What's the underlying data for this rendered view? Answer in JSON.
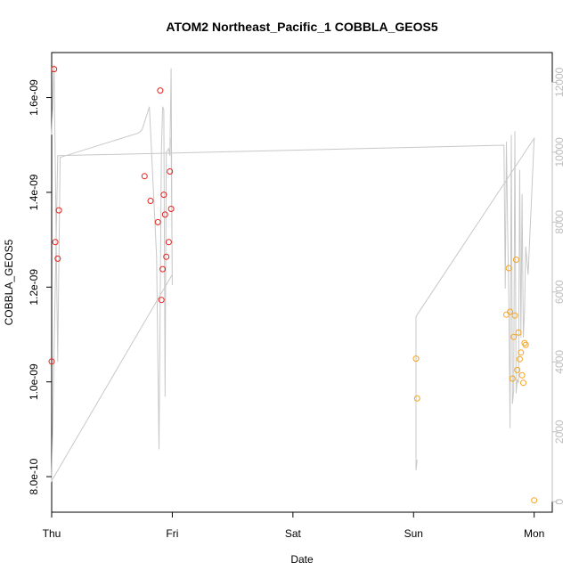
{
  "chart_data": {
    "type": "scatter",
    "title": "ATOM2 Northeast_Pacific_1 COBBLA_GEOS5",
    "xlabel": "Date",
    "ylabel": "COBBLA_GEOS5",
    "xlim": [
      0,
      4.15
    ],
    "ylim": [
      7.25e-10,
      1.695e-09
    ],
    "y2lim": [
      -300,
      12850
    ],
    "x_tick_values": [
      0,
      1,
      2,
      3,
      4
    ],
    "x_tick_labels": [
      "Thu",
      "Fri",
      "Sat",
      "Sun",
      "Mon"
    ],
    "y_tick_values": [
      8e-10,
      1e-09,
      1.2e-09,
      1.4e-09,
      1.6e-09
    ],
    "y_tick_labels": [
      "8.0e-10",
      "1.0e-09",
      "1.2e-09",
      "1.4e-09",
      "1.6e-09"
    ],
    "y2_tick_values": [
      0,
      2000,
      4000,
      6000,
      8000,
      10000,
      12000
    ],
    "y2_tick_labels": [
      "0",
      "2000",
      "4000",
      "6000",
      "8000",
      "10000",
      "12000"
    ],
    "grid": false,
    "colors": {
      "red": "#e8211e",
      "orange": "#f5a31f",
      "line": "#c8c8c8",
      "right_axis": "#bdbdbd"
    },
    "series": [
      {
        "color": "red",
        "x": [
          0.0,
          0.02,
          0.03,
          0.05,
          0.06,
          0.77,
          0.82,
          0.88,
          0.9,
          0.91,
          0.92,
          0.93,
          0.94,
          0.95,
          0.97,
          0.98,
          0.99
        ],
        "y": [
          1.043e-09,
          1.66e-09,
          1.295e-09,
          1.26e-09,
          1.362e-09,
          1.434e-09,
          1.382e-09,
          1.337e-09,
          1.615e-09,
          1.173e-09,
          1.238e-09,
          1.395e-09,
          1.353e-09,
          1.264e-09,
          1.295e-09,
          1.444e-09,
          1.365e-09
        ]
      },
      {
        "color": "orange",
        "x": [
          3.02,
          3.03,
          3.77,
          3.79,
          3.8,
          3.82,
          3.83,
          3.84,
          3.85,
          3.86,
          3.87,
          3.88,
          3.89,
          3.9,
          3.91,
          3.92,
          3.93,
          4.0
        ],
        "y": [
          1.049e-09,
          9.65e-10,
          1.142e-09,
          1.24e-09,
          1.148e-09,
          1.007e-09,
          1.095e-09,
          1.14e-09,
          1.258e-09,
          1.025e-09,
          1.104e-09,
          1.048e-09,
          1.062e-09,
          1.014e-09,
          9.98e-10,
          1.082e-09,
          1.078e-09,
          7.5e-10
        ]
      },
      {
        "kind": "line",
        "axis": "right",
        "x": [
          0.0,
          0.02,
          0.05,
          0.07,
          0.72,
          0.75,
          0.81,
          0.87,
          0.89,
          0.91,
          0.92,
          0.93,
          0.94,
          0.95,
          0.97,
          0.98,
          0.99,
          1.0,
          0.99,
          1.0,
          0.0,
          0.05,
          3.75,
          3.76,
          3.77,
          3.78,
          3.79,
          3.8,
          3.81,
          3.82,
          3.83,
          3.84,
          3.85,
          3.86,
          3.87,
          3.88,
          3.89,
          3.9,
          3.91,
          3.92,
          3.93,
          3.95,
          4.0,
          3.02,
          3.02,
          3.03
        ],
        "y": [
          10500,
          12500,
          4000,
          9850,
          10550,
          10650,
          11300,
          7000,
          1500,
          10000,
          11300,
          11200,
          3000,
          10000,
          10100,
          9900,
          12400,
          6200,
          10400,
          6500,
          600,
          9900,
          10200,
          6100,
          10300,
          7800,
          5800,
          2100,
          10500,
          2800,
          3200,
          10600,
          3100,
          3500,
          3400,
          9500,
          4700,
          8800,
          4700,
          5500,
          7300,
          6500,
          10400,
          5300,
          900,
          1200
        ]
      }
    ]
  }
}
